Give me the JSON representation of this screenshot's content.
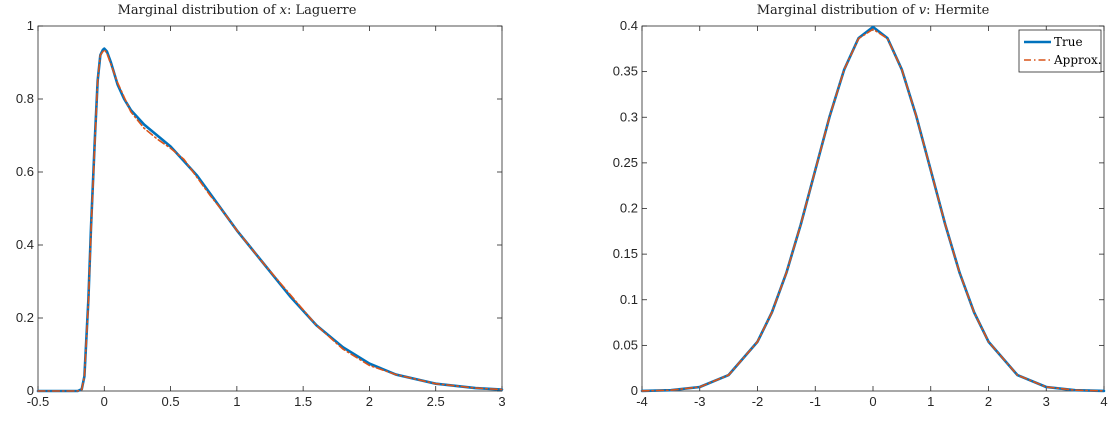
{
  "chart_data": [
    {
      "type": "line",
      "title": {
        "prefix": "Marginal distribution of ",
        "variable": "x",
        "suffix": ": Laguerre"
      },
      "xlim": [
        -0.5,
        3
      ],
      "ylim": [
        0,
        1
      ],
      "xticks": [
        -0.5,
        0,
        0.5,
        1,
        1.5,
        2,
        2.5,
        3
      ],
      "xtick_labels": [
        "-0.5",
        "0",
        "0.5",
        "1",
        "1.5",
        "2",
        "2.5",
        "3"
      ],
      "yticks": [
        0,
        0.2,
        0.4,
        0.6,
        0.8,
        1
      ],
      "ytick_labels": [
        "0",
        "0.2",
        "0.4",
        "0.6",
        "0.8",
        "1"
      ],
      "grid": false,
      "legend": null,
      "series": [
        {
          "name": "True",
          "color": "#0072BD",
          "style": "solid",
          "x": [
            -0.5,
            -0.2,
            -0.17,
            -0.15,
            -0.12,
            -0.1,
            -0.07,
            -0.05,
            -0.03,
            -0.01,
            0,
            0.02,
            0.05,
            0.1,
            0.15,
            0.2,
            0.3,
            0.4,
            0.5,
            0.6,
            0.7,
            0.8,
            0.9,
            1.0,
            1.2,
            1.4,
            1.6,
            1.8,
            2.0,
            2.2,
            2.5,
            2.8,
            3.0
          ],
          "y": [
            0,
            0,
            0.005,
            0.04,
            0.25,
            0.45,
            0.7,
            0.85,
            0.92,
            0.935,
            0.938,
            0.93,
            0.9,
            0.84,
            0.8,
            0.77,
            0.73,
            0.7,
            0.67,
            0.63,
            0.59,
            0.54,
            0.49,
            0.44,
            0.35,
            0.26,
            0.18,
            0.12,
            0.075,
            0.045,
            0.02,
            0.008,
            0.004
          ]
        },
        {
          "name": "Approx.",
          "color": "#D95319",
          "style": "dashdot",
          "x": [
            -0.5,
            -0.2,
            -0.17,
            -0.15,
            -0.12,
            -0.1,
            -0.07,
            -0.05,
            -0.03,
            -0.01,
            0,
            0.02,
            0.05,
            0.1,
            0.15,
            0.2,
            0.3,
            0.4,
            0.5,
            0.6,
            0.7,
            0.8,
            0.9,
            1.0,
            1.2,
            1.4,
            1.6,
            1.8,
            2.0,
            2.2,
            2.5,
            2.8,
            3.0
          ],
          "y": [
            0,
            0,
            0.004,
            0.04,
            0.24,
            0.44,
            0.69,
            0.85,
            0.92,
            0.93,
            0.935,
            0.925,
            0.895,
            0.845,
            0.805,
            0.765,
            0.72,
            0.69,
            0.665,
            0.635,
            0.585,
            0.535,
            0.49,
            0.44,
            0.35,
            0.265,
            0.18,
            0.115,
            0.07,
            0.045,
            0.02,
            0.008,
            0.004
          ]
        }
      ]
    },
    {
      "type": "line",
      "title": {
        "prefix": "Marginal distribution of ",
        "variable": "v",
        "suffix": ": Hermite"
      },
      "xlim": [
        -4,
        4
      ],
      "ylim": [
        0,
        0.4
      ],
      "xticks": [
        -4,
        -3,
        -2,
        -1,
        0,
        1,
        2,
        3,
        4
      ],
      "xtick_labels": [
        "-4",
        "-3",
        "-2",
        "-1",
        "0",
        "1",
        "2",
        "3",
        "4"
      ],
      "yticks": [
        0,
        0.05,
        0.1,
        0.15,
        0.2,
        0.25,
        0.3,
        0.35,
        0.4
      ],
      "ytick_labels": [
        "0",
        "0.05",
        "0.1",
        "0.15",
        "0.2",
        "0.25",
        "0.3",
        "0.35",
        "0.4"
      ],
      "grid": false,
      "legend": "top-right",
      "series": [
        {
          "name": "True",
          "color": "#0072BD",
          "style": "solid",
          "x": [
            -4,
            -3.5,
            -3,
            -2.5,
            -2,
            -1.75,
            -1.5,
            -1.25,
            -1,
            -0.75,
            -0.5,
            -0.25,
            0,
            0.25,
            0.5,
            0.75,
            1,
            1.25,
            1.5,
            1.75,
            2,
            2.5,
            3,
            3.5,
            4
          ],
          "y": [
            0.0001,
            0.0009,
            0.0044,
            0.0175,
            0.054,
            0.0863,
            0.1295,
            0.1826,
            0.242,
            0.3011,
            0.3521,
            0.3867,
            0.3989,
            0.3867,
            0.3521,
            0.3011,
            0.242,
            0.1826,
            0.1295,
            0.0863,
            0.054,
            0.0175,
            0.0044,
            0.0009,
            0.0001
          ]
        },
        {
          "name": "Approx.",
          "color": "#D95319",
          "style": "dashdot",
          "x": [
            -4,
            -3.5,
            -3,
            -2.5,
            -2,
            -1.75,
            -1.5,
            -1.25,
            -1,
            -0.75,
            -0.5,
            -0.25,
            0,
            0.25,
            0.5,
            0.75,
            1,
            1.25,
            1.5,
            1.75,
            2,
            2.5,
            3,
            3.5,
            4
          ],
          "y": [
            0.0001,
            0.0009,
            0.0044,
            0.0175,
            0.054,
            0.0863,
            0.1295,
            0.1826,
            0.242,
            0.3011,
            0.3521,
            0.3862,
            0.3965,
            0.3862,
            0.3521,
            0.3011,
            0.242,
            0.1826,
            0.1295,
            0.0863,
            0.054,
            0.0175,
            0.0044,
            0.0009,
            0.0001
          ]
        }
      ]
    }
  ]
}
